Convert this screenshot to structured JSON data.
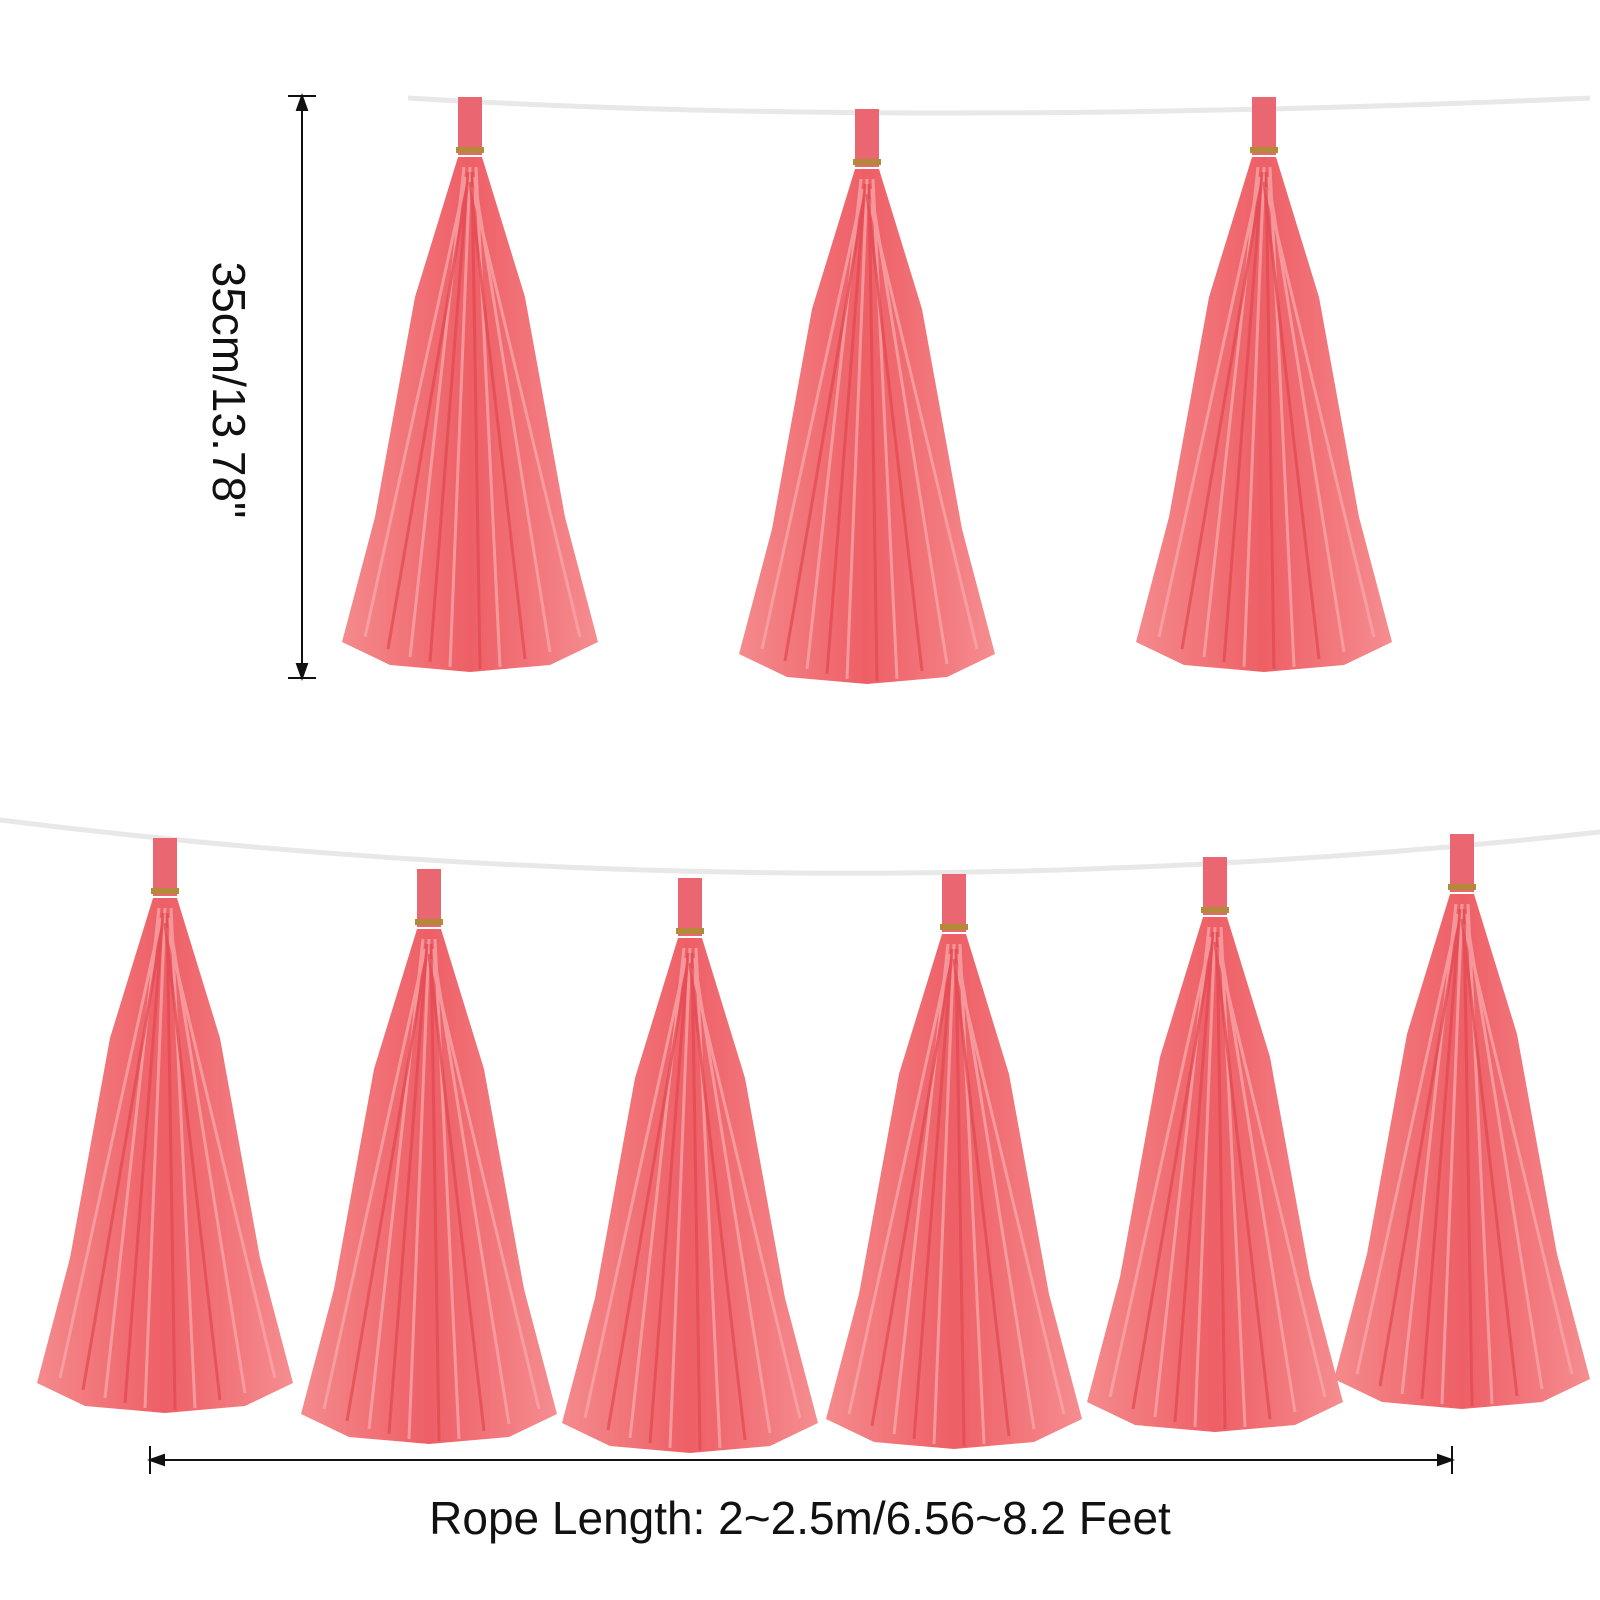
{
  "dimensions": {
    "height_label": "35cm/13.78\"",
    "rope_length_label": "Rope Length: 2~2.5m/6.56~8.2 Feet"
  }
}
